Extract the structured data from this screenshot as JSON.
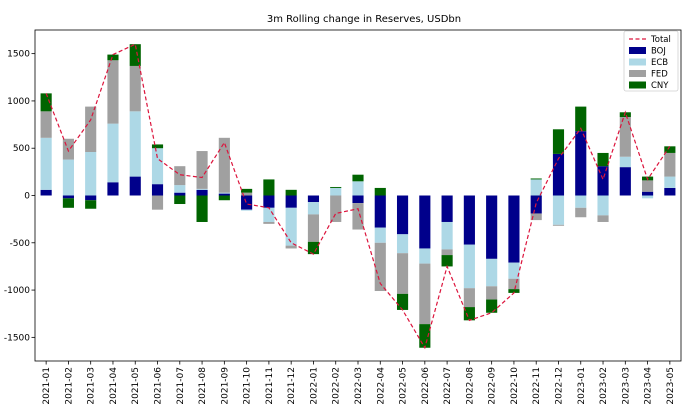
{
  "chart_data": {
    "type": "bar",
    "stacked": true,
    "title": "3m Rolling change in Reserves, USDbn",
    "xlabel": "",
    "ylabel": "",
    "ylim": [
      -1750,
      1750
    ],
    "yticks": [
      -1500,
      -1000,
      -500,
      0,
      500,
      1000,
      1500
    ],
    "grid": false,
    "legend_position": "top-right",
    "categories": [
      "2021-01",
      "2021-02",
      "2021-03",
      "2021-04",
      "2021-05",
      "2021-06",
      "2021-07",
      "2021-08",
      "2021-09",
      "2021-10",
      "2021-11",
      "2021-12",
      "2022-01",
      "2022-02",
      "2022-03",
      "2022-04",
      "2022-05",
      "2022-06",
      "2022-07",
      "2022-08",
      "2022-09",
      "2022-10",
      "2022-11",
      "2022-12",
      "2023-01",
      "2023-02",
      "2023-03",
      "2023-04",
      "2023-05"
    ],
    "series": [
      {
        "name": "BOJ",
        "color": "#00008b",
        "values": [
          60,
          -30,
          -50,
          140,
          200,
          120,
          30,
          60,
          20,
          -150,
          -130,
          -130,
          -70,
          0,
          -80,
          -340,
          -410,
          -560,
          -280,
          -520,
          -670,
          -710,
          -190,
          440,
          680,
          310,
          300,
          40,
          80
        ]
      },
      {
        "name": "ECB",
        "color": "#add8e6",
        "values": [
          550,
          380,
          460,
          620,
          690,
          380,
          80,
          10,
          10,
          -10,
          -150,
          -400,
          -130,
          80,
          150,
          -160,
          -200,
          -160,
          -290,
          -460,
          -290,
          -170,
          170,
          -310,
          -130,
          -210,
          110,
          -30,
          120
        ]
      },
      {
        "name": "FED",
        "color": "#a0a0a0",
        "values": [
          280,
          220,
          480,
          670,
          480,
          -150,
          200,
          400,
          580,
          30,
          -20,
          -30,
          -290,
          -280,
          -280,
          -510,
          -430,
          -640,
          -60,
          -200,
          -140,
          -110,
          -70,
          -10,
          -100,
          -70,
          420,
          120,
          250
        ]
      },
      {
        "name": "CNY",
        "color": "#006400",
        "values": [
          190,
          -100,
          -90,
          60,
          230,
          40,
          -90,
          -280,
          -50,
          40,
          170,
          60,
          -130,
          10,
          70,
          80,
          -170,
          -250,
          -120,
          -140,
          -140,
          -40,
          10,
          260,
          260,
          140,
          50,
          40,
          70
        ]
      }
    ],
    "total": {
      "name": "Total",
      "color": "#dc143c",
      "values": [
        1080,
        470,
        800,
        1490,
        1600,
        390,
        220,
        190,
        560,
        -90,
        -130,
        -500,
        -620,
        -190,
        -140,
        -930,
        -1210,
        -1610,
        -750,
        -1320,
        -1240,
        -1030,
        -80,
        390,
        710,
        170,
        880,
        170,
        520
      ]
    }
  }
}
